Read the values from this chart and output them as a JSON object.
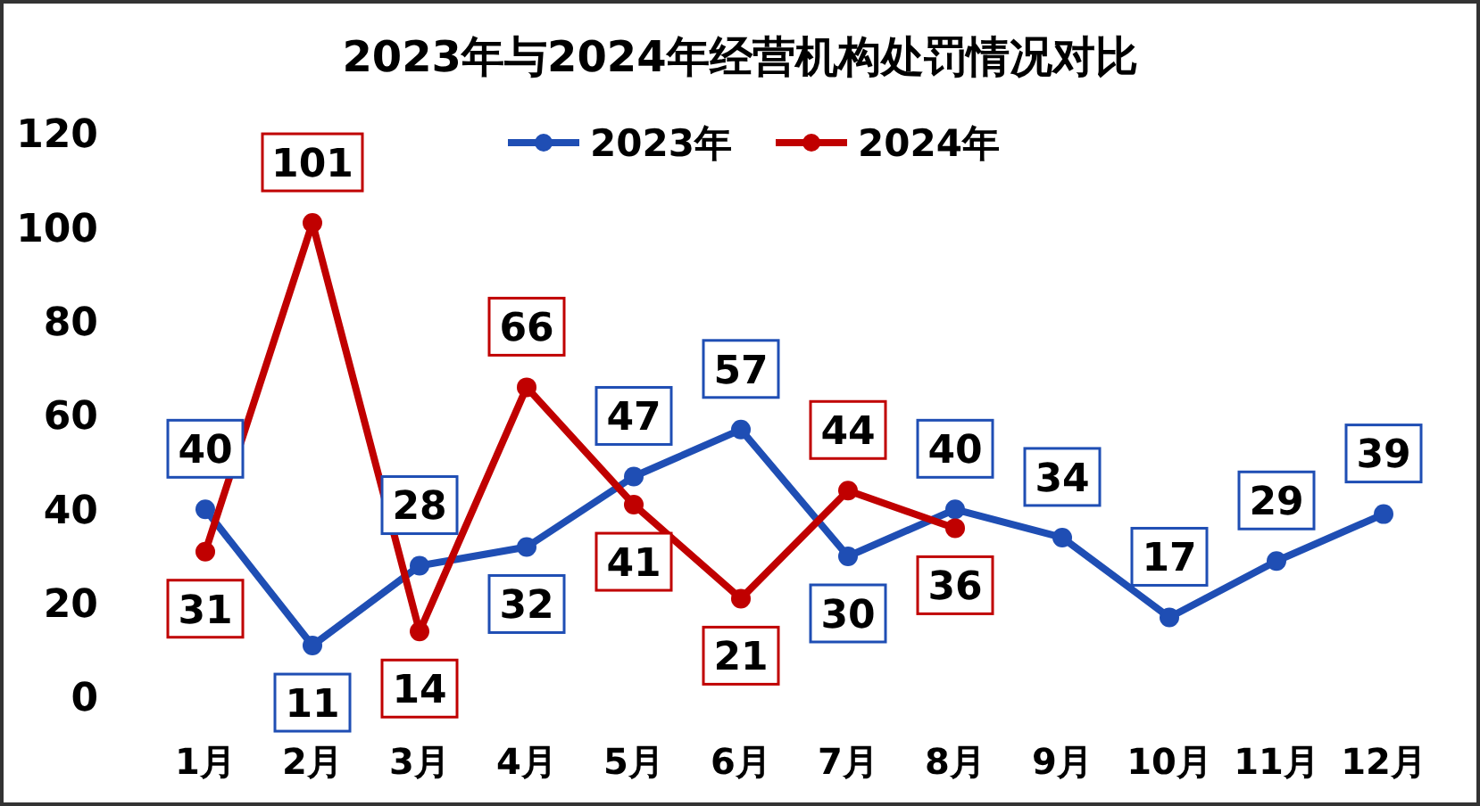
{
  "chart_data": {
    "type": "line",
    "title": "2023年与2024年经营机构处罚情况对比",
    "categories": [
      "1月",
      "2月",
      "3月",
      "4月",
      "5月",
      "6月",
      "7月",
      "8月",
      "9月",
      "10月",
      "11月",
      "12月"
    ],
    "series": [
      {
        "name": "2023年",
        "color": "#1f4eb4",
        "values": [
          40,
          11,
          28,
          32,
          47,
          57,
          30,
          40,
          34,
          17,
          29,
          39
        ]
      },
      {
        "name": "2024年",
        "color": "#c00000",
        "values": [
          31,
          101,
          14,
          66,
          41,
          21,
          44,
          36,
          null,
          null,
          null,
          null
        ]
      }
    ],
    "ylim": [
      0,
      120
    ],
    "yticks": [
      0,
      20,
      40,
      60,
      80,
      100,
      120
    ],
    "grid": false,
    "legend": "top",
    "marker": "circle",
    "line_style": "solid",
    "data_labels": true
  }
}
